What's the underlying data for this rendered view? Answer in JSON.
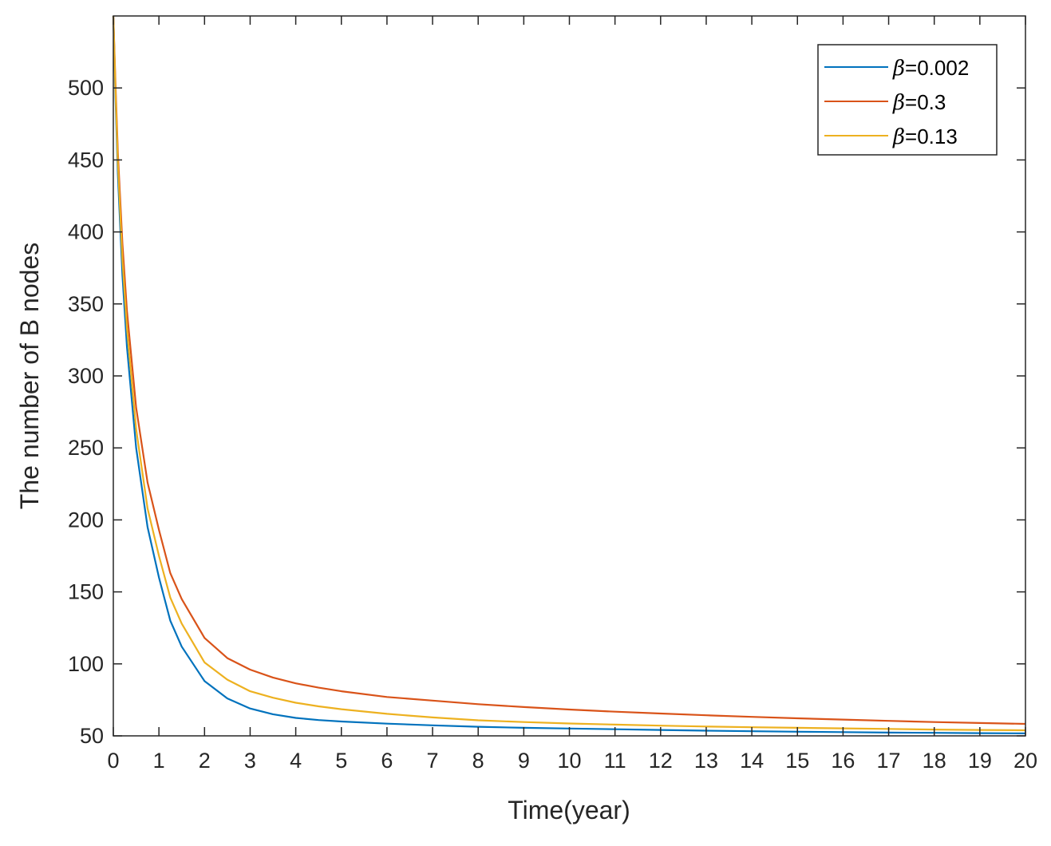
{
  "chart_data": {
    "type": "line",
    "title": "",
    "xlabel": "Time(year)",
    "ylabel": "The number of B nodes",
    "xlim": [
      0,
      20
    ],
    "ylim": [
      50,
      550
    ],
    "xticks": [
      0,
      1,
      2,
      3,
      4,
      5,
      6,
      7,
      8,
      9,
      10,
      11,
      12,
      13,
      14,
      15,
      16,
      17,
      18,
      19,
      20
    ],
    "yticks": [
      50,
      100,
      150,
      200,
      250,
      300,
      350,
      400,
      450,
      500
    ],
    "grid": false,
    "legend_position": "top-right",
    "x": [
      0,
      0.05,
      0.1,
      0.2,
      0.3,
      0.5,
      0.75,
      1,
      1.25,
      1.5,
      2,
      2.5,
      3,
      3.5,
      4,
      4.5,
      5,
      6,
      7,
      8,
      9,
      10,
      11,
      12,
      13,
      14,
      15,
      16,
      17,
      18,
      19,
      20
    ],
    "series": [
      {
        "name": "β=0.002",
        "legend_symbol": "β",
        "legend_value": "=0.002",
        "color": "#0072BD",
        "values": [
          550,
          490,
          440,
          370,
          320,
          250,
          195,
          160,
          130,
          112,
          88,
          76,
          69,
          65,
          62.5,
          61,
          60,
          58.5,
          57.3,
          56.3,
          55.6,
          55.1,
          54.6,
          54.1,
          53.6,
          53.2,
          52.9,
          52.6,
          52.3,
          52.1,
          51.9,
          51.7
        ]
      },
      {
        "name": "β=0.3",
        "legend_symbol": "β",
        "legend_value": "=0.3",
        "color": "#D95319",
        "values": [
          550,
          500,
          455,
          392,
          345,
          278,
          226,
          193,
          163,
          145,
          118,
          104,
          96,
          90.5,
          86.5,
          83.5,
          81,
          77,
          74.5,
          72,
          70,
          68.3,
          66.8,
          65.5,
          64.3,
          63.2,
          62.2,
          61.3,
          60.4,
          59.6,
          58.9,
          58.3
        ]
      },
      {
        "name": "β=0.13",
        "legend_symbol": "β",
        "legend_value": "=0.13",
        "color": "#EDB120",
        "values": [
          550,
          495,
          448,
          381,
          333,
          263,
          208,
          175,
          146,
          128,
          101,
          89,
          81,
          76.5,
          73,
          70.5,
          68.5,
          65.3,
          62.8,
          60.8,
          59.6,
          58.6,
          57.8,
          57.1,
          56.5,
          56,
          55.6,
          55.2,
          54.8,
          54.4,
          54.1,
          53.9
        ]
      }
    ]
  }
}
